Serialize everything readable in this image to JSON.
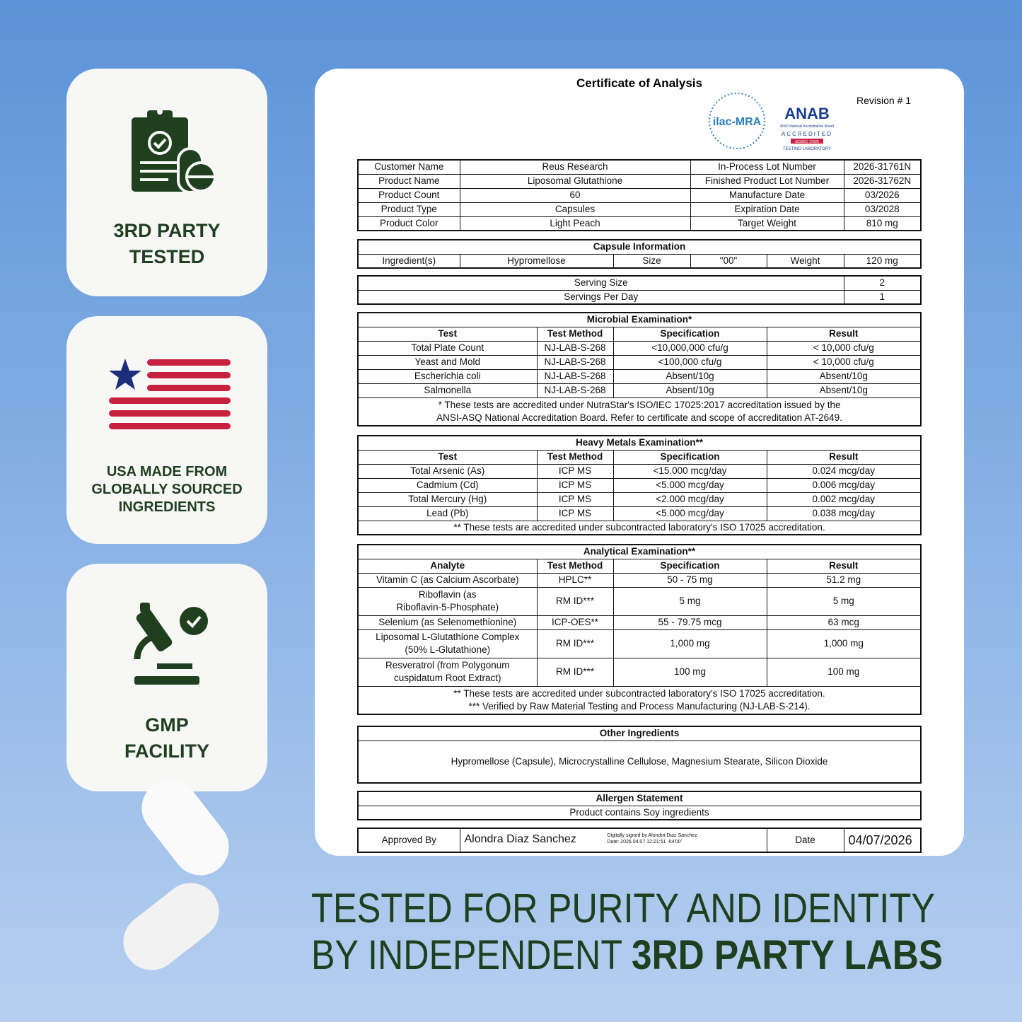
{
  "badges": [
    {
      "lines": [
        "3RD PARTY",
        "TESTED"
      ]
    },
    {
      "lines": [
        "USA MADE FROM",
        "GLOBALLY SOURCED",
        "INGREDIENTS"
      ]
    },
    {
      "lines": [
        "GMP",
        "FACILITY"
      ]
    }
  ],
  "certificate": {
    "title": "Certificate of Analysis",
    "revision": "Revision # 1",
    "logos": {
      "ilac": "ilac-MRA",
      "anab": "ANAB",
      "anab_sub": "ANSI National Accreditation Board",
      "accredited": "ACCREDITED",
      "iso": "ISO/IEC 17025",
      "lab": "TESTING LABORATORY"
    },
    "product": {
      "rows": [
        [
          "Customer Name",
          "Reus Research",
          "In-Process Lot Number",
          "2026-31761N"
        ],
        [
          "Product Name",
          "Liposomal Glutathione",
          "Finished Product Lot Number",
          "2026-31762N"
        ],
        [
          "Product Count",
          "60",
          "Manufacture Date",
          "03/2026"
        ],
        [
          "Product Type",
          "Capsules",
          "Expiration Date",
          "03/2028"
        ],
        [
          "Product Color",
          "Light Peach",
          "Target Weight",
          "810 mg"
        ]
      ]
    },
    "capsule": {
      "title": "Capsule Information",
      "rows": [
        [
          "Ingredient(s)",
          "Hypromellose",
          "Size",
          "\"00\"",
          "Weight",
          "120 mg"
        ]
      ]
    },
    "serving": {
      "rows": [
        [
          "Serving Size",
          "2"
        ],
        [
          "Servings Per Day",
          "1"
        ]
      ]
    },
    "microbial": {
      "title": "Microbial Examination*",
      "header": [
        "Test",
        "Test Method",
        "Specification",
        "Result"
      ],
      "rows": [
        [
          "Total Plate Count",
          "NJ-LAB-S-268",
          "<10,000,000 cfu/g",
          "< 10,000 cfu/g"
        ],
        [
          "Yeast and Mold",
          "NJ-LAB-S-268",
          "<100,000 cfu/g",
          "< 10,000 cfu/g"
        ],
        [
          "Escherichia coli",
          "NJ-LAB-S-268",
          "Absent/10g",
          "Absent/10g"
        ],
        [
          "Salmonella",
          "NJ-LAB-S-268",
          "Absent/10g",
          "Absent/10g"
        ]
      ],
      "notes": [
        "* These tests are accredited under NutraStar's ISO/IEC 17025:2017 accreditation issued by the",
        "ANSI-ASQ National Accreditation Board. Refer to certificate and scope of accreditation AT-2649."
      ]
    },
    "heavy_metals": {
      "title": "Heavy Metals Examination**",
      "header": [
        "Test",
        "Test Method",
        "Specification",
        "Result"
      ],
      "rows": [
        [
          "Total Arsenic (As)",
          "ICP MS",
          "<15.000 mcg/day",
          "0.024 mcg/day"
        ],
        [
          "Cadmium (Cd)",
          "ICP MS",
          "<5.000 mcg/day",
          "0.006 mcg/day"
        ],
        [
          "Total Mercury (Hg)",
          "ICP MS",
          "<2.000 mcg/day",
          "0.002 mcg/day"
        ],
        [
          "Lead (Pb)",
          "ICP MS",
          "<5.000 mcg/day",
          "0.038 mcg/day"
        ]
      ],
      "notes": [
        "** These tests are accredited under subcontracted laboratory's ISO 17025 accreditation."
      ]
    },
    "analytical": {
      "title": "Analytical Examination**",
      "header": [
        "Analyte",
        "Test Method",
        "Specification",
        "Result"
      ],
      "rows": [
        [
          "Vitamin C (as Calcium Ascorbate)",
          "HPLC**",
          "50 - 75 mg",
          "51.2 mg"
        ],
        [
          "Riboflavin (as\nRiboflavin-5-Phosphate)",
          "RM ID***",
          "5 mg",
          "5 mg"
        ],
        [
          "Selenium (as Selenomethionine)",
          "ICP-OES**",
          "55 - 79.75 mcg",
          "63 mcg"
        ],
        [
          "Liposomal L-Glutathione Complex\n(50% L-Glutathione)",
          "RM ID***",
          "1,000 mg",
          "1,000 mg"
        ],
        [
          "Resveratrol (from Polygonum\ncuspidatum Root Extract)",
          "RM ID***",
          "100 mg",
          "100 mg"
        ]
      ],
      "notes": [
        "** These tests are accredited under subcontracted laboratory's ISO 17025 accreditation.",
        "*** Verified by Raw Material Testing and Process Manufacturing (NJ-LAB-S-214)."
      ]
    },
    "other": {
      "title": "Other Ingredients",
      "text": "Hypromellose (Capsule), Microcrystalline Cellulose, Magnesium Stearate, Silicon Dioxide"
    },
    "allergen": {
      "title": "Allergen Statement",
      "text": "Product contains Soy ingredients"
    },
    "approval": {
      "label": "Approved By",
      "name": "Alondra Diaz Sanchez",
      "signature": [
        "Digitally signed by Alondra Diaz Sanchez",
        "Date: 2026.04.07 12:21:51 -04'00'"
      ],
      "date_label": "Date",
      "date": "04/07/2026"
    }
  },
  "headline": {
    "line1": "TESTED FOR PURITY AND IDENTITY",
    "line2": "BY INDEPENDENT",
    "line2_bold": "3RD PARTY LABS"
  }
}
